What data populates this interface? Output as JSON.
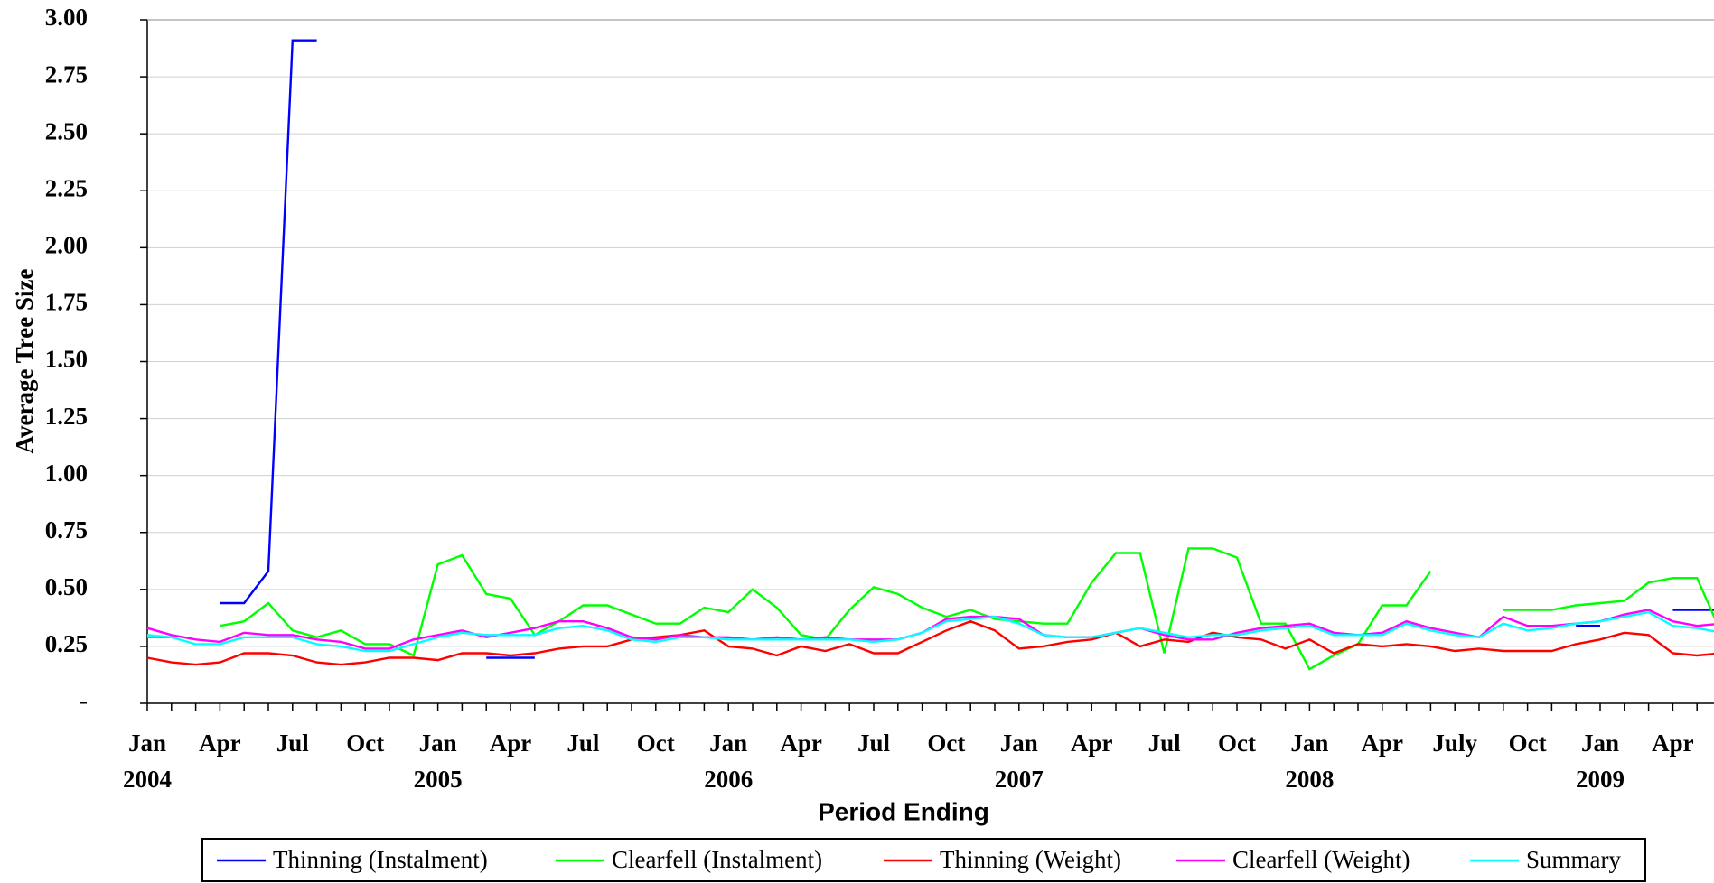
{
  "chart_data": {
    "type": "line",
    "y_label": "Average Tree Size",
    "x_label": "Period Ending",
    "categories": [
      "Jan",
      null,
      null,
      "Apr",
      null,
      null,
      "Jul",
      null,
      null,
      "Oct",
      null,
      null,
      "Jan",
      null,
      null,
      "Apr",
      null,
      null,
      "Jul",
      null,
      null,
      "Oct",
      null,
      null,
      "Jan",
      null,
      null,
      "Apr",
      null,
      null,
      "Jul",
      null,
      null,
      "Oct",
      null,
      null,
      "Jan",
      null,
      null,
      "Apr",
      null,
      null,
      "Jul",
      null,
      null,
      "Oct",
      null,
      null,
      "Jan",
      null,
      null,
      "Apr",
      null,
      null,
      "July",
      null,
      null,
      "Oct",
      null,
      null,
      "Jan",
      null,
      null,
      "Apr",
      null,
      null
    ],
    "x_year_labels": [
      "2004",
      null,
      null,
      null,
      null,
      null,
      null,
      null,
      null,
      null,
      null,
      null,
      "2005",
      null,
      null,
      null,
      null,
      null,
      null,
      null,
      null,
      null,
      null,
      null,
      "2006",
      null,
      null,
      null,
      null,
      null,
      null,
      null,
      null,
      null,
      null,
      null,
      "2007",
      null,
      null,
      null,
      null,
      null,
      null,
      null,
      null,
      null,
      null,
      null,
      "2008",
      null,
      null,
      null,
      null,
      null,
      null,
      null,
      null,
      null,
      null,
      null,
      "2009",
      null,
      null,
      null,
      null,
      null
    ],
    "ylim": [
      0,
      3
    ],
    "yticks": [
      {
        "value": 0,
        "label": "-"
      },
      {
        "value": 0.25,
        "label": "0.25"
      },
      {
        "value": 0.5,
        "label": "0.50"
      },
      {
        "value": 0.75,
        "label": "0.75"
      },
      {
        "value": 1,
        "label": "1.00"
      },
      {
        "value": 1.25,
        "label": "1.25"
      },
      {
        "value": 1.5,
        "label": "1.50"
      },
      {
        "value": 1.75,
        "label": "1.75"
      },
      {
        "value": 2,
        "label": "2.00"
      },
      {
        "value": 2.25,
        "label": "2.25"
      },
      {
        "value": 2.5,
        "label": "2.50"
      },
      {
        "value": 2.75,
        "label": "2.75"
      },
      {
        "value": 3,
        "label": "3.00"
      }
    ],
    "grid": true,
    "legend": "bottom",
    "series": [
      {
        "name": "Thinning (Instalment)",
        "color": "#0000ff",
        "values": [
          null,
          null,
          null,
          0.44,
          0.44,
          0.58,
          2.91,
          2.91,
          null,
          null,
          null,
          null,
          null,
          null,
          0.2,
          0.2,
          0.2,
          null,
          null,
          null,
          null,
          null,
          null,
          null,
          null,
          null,
          null,
          null,
          null,
          null,
          null,
          null,
          null,
          null,
          null,
          null,
          null,
          null,
          null,
          null,
          null,
          null,
          null,
          null,
          null,
          null,
          null,
          null,
          null,
          null,
          null,
          null,
          null,
          null,
          null,
          null,
          null,
          null,
          null,
          0.34,
          0.34,
          null,
          null,
          0.41,
          0.41,
          0.41
        ]
      },
      {
        "name": "Clearfell (Instalment)",
        "color": "#00ff00",
        "values": [
          0.29,
          0.29,
          null,
          0.34,
          0.36,
          0.44,
          0.32,
          0.29,
          0.32,
          0.26,
          0.26,
          0.21,
          0.61,
          0.65,
          0.48,
          0.46,
          0.3,
          0.36,
          0.43,
          0.43,
          0.39,
          0.35,
          0.35,
          0.42,
          0.4,
          0.5,
          0.42,
          0.3,
          0.28,
          0.41,
          0.51,
          0.48,
          0.42,
          0.38,
          0.41,
          0.37,
          0.36,
          0.35,
          0.35,
          0.53,
          0.66,
          0.66,
          0.22,
          0.68,
          0.68,
          0.64,
          0.35,
          0.35,
          0.15,
          0.21,
          0.26,
          0.43,
          0.43,
          0.58,
          null,
          null,
          0.41,
          0.41,
          0.41,
          0.43,
          0.44,
          0.45,
          0.53,
          0.55,
          0.55,
          0.31
        ]
      },
      {
        "name": "Thinning (Weight)",
        "color": "#ff0000",
        "values": [
          0.2,
          0.18,
          0.17,
          0.18,
          0.22,
          0.22,
          0.21,
          0.18,
          0.17,
          0.18,
          0.2,
          0.2,
          0.19,
          0.22,
          0.22,
          0.21,
          0.22,
          0.24,
          0.25,
          0.25,
          0.28,
          0.29,
          0.3,
          0.32,
          0.25,
          0.24,
          0.21,
          0.25,
          0.23,
          0.26,
          0.22,
          0.22,
          0.27,
          0.32,
          0.36,
          0.32,
          0.24,
          0.25,
          0.27,
          0.28,
          0.31,
          0.25,
          0.28,
          0.27,
          0.31,
          0.29,
          0.28,
          0.24,
          0.28,
          0.22,
          0.26,
          0.25,
          0.26,
          0.25,
          0.23,
          0.24,
          0.23,
          0.23,
          0.23,
          0.26,
          0.28,
          0.31,
          0.3,
          0.22,
          0.21,
          0.22
        ]
      },
      {
        "name": "Clearfell (Weight)",
        "color": "#ff00ff",
        "values": [
          0.33,
          0.3,
          0.28,
          0.27,
          0.31,
          0.3,
          0.3,
          0.28,
          0.27,
          0.24,
          0.24,
          0.28,
          0.3,
          0.32,
          0.29,
          0.31,
          0.33,
          0.36,
          0.36,
          0.33,
          0.29,
          0.28,
          0.3,
          0.29,
          0.29,
          0.28,
          0.29,
          0.28,
          0.29,
          0.28,
          0.28,
          0.28,
          0.31,
          0.37,
          0.38,
          0.38,
          0.37,
          0.3,
          0.29,
          0.29,
          0.31,
          0.33,
          0.3,
          0.28,
          0.28,
          0.31,
          0.33,
          0.34,
          0.35,
          0.31,
          0.3,
          0.31,
          0.36,
          0.33,
          0.31,
          0.29,
          0.38,
          0.34,
          0.34,
          0.35,
          0.36,
          0.39,
          0.41,
          0.36,
          0.34,
          0.35
        ]
      },
      {
        "name": "Summary",
        "color": "#00ffff",
        "values": [
          0.3,
          0.29,
          0.26,
          0.26,
          0.29,
          0.29,
          0.29,
          0.26,
          0.25,
          0.23,
          0.23,
          0.26,
          0.29,
          0.31,
          0.3,
          0.3,
          0.3,
          0.33,
          0.34,
          0.32,
          0.28,
          0.27,
          0.29,
          0.29,
          0.28,
          0.28,
          0.28,
          0.28,
          0.28,
          0.28,
          0.27,
          0.28,
          0.31,
          0.36,
          0.37,
          0.38,
          0.35,
          0.3,
          0.29,
          0.29,
          0.31,
          0.33,
          0.31,
          0.29,
          0.3,
          0.3,
          0.32,
          0.33,
          0.34,
          0.3,
          0.3,
          0.3,
          0.35,
          0.32,
          0.3,
          0.29,
          0.35,
          0.32,
          0.33,
          0.35,
          0.36,
          0.38,
          0.4,
          0.34,
          0.33,
          0.31
        ]
      }
    ]
  }
}
